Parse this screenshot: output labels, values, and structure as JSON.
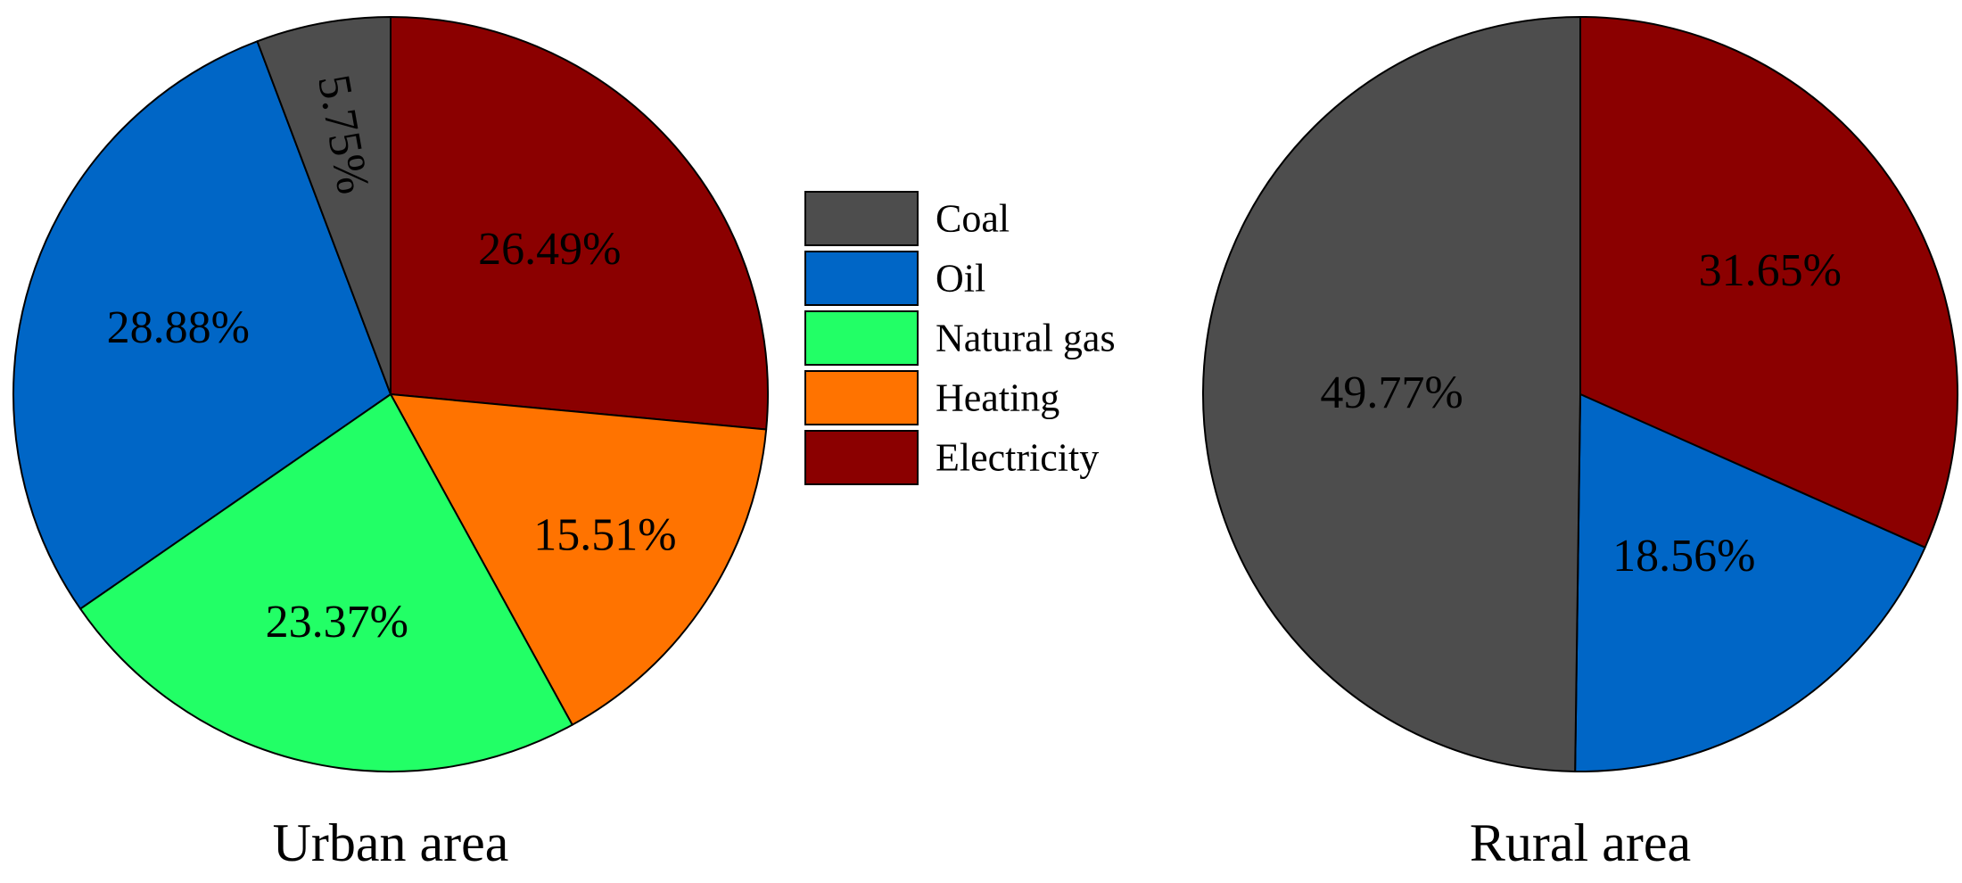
{
  "chart_data": [
    {
      "type": "pie",
      "title": "Urban area",
      "slices": [
        {
          "label": "Electricity",
          "value": 26.49,
          "text": "26.49%",
          "color": "#8b0000"
        },
        {
          "label": "Heating",
          "value": 15.51,
          "text": "15.51%",
          "color": "#ff7300"
        },
        {
          "label": "Natural gas",
          "value": 23.37,
          "text": "23.37%",
          "color": "#22ff66"
        },
        {
          "label": "Oil",
          "value": 28.88,
          "text": "28.88%",
          "color": "#0066c6"
        },
        {
          "label": "Coal",
          "value": 5.75,
          "text": "5.75%",
          "color": "#4d4d4d"
        }
      ]
    },
    {
      "type": "pie",
      "title": "Rural area",
      "slices": [
        {
          "label": "Electricity",
          "value": 31.65,
          "text": "31.65%",
          "color": "#8b0000"
        },
        {
          "label": "Oil",
          "value": 18.56,
          "text": "18.56%",
          "color": "#0066c6"
        },
        {
          "label": "Coal",
          "value": 49.77,
          "text": "49.77%",
          "color": "#4d4d4d"
        }
      ]
    }
  ],
  "legend": {
    "placement": "center",
    "items": [
      {
        "label": "Coal",
        "color": "#4d4d4d"
      },
      {
        "label": "Oil",
        "color": "#0066c6"
      },
      {
        "label": "Natural gas",
        "color": "#22ff66"
      },
      {
        "label": "Heating",
        "color": "#ff7300"
      },
      {
        "label": "Electricity",
        "color": "#8b0000"
      }
    ]
  }
}
